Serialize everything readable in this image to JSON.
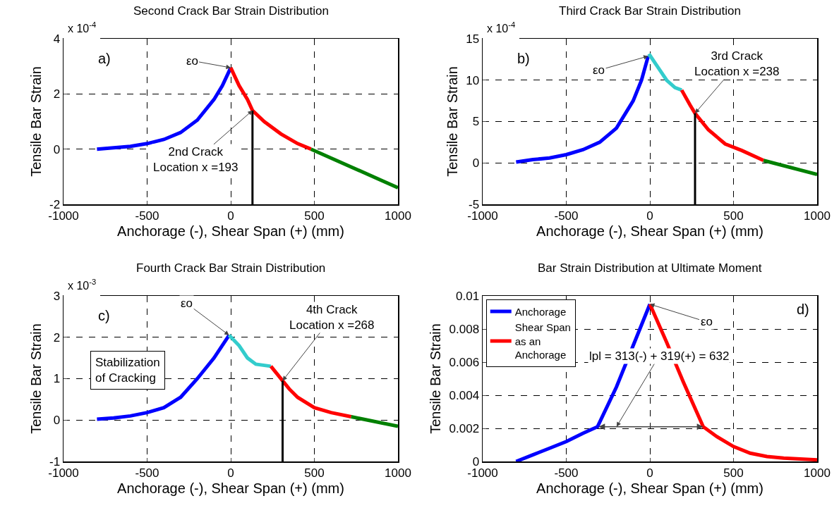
{
  "chart_data": [
    {
      "type": "line",
      "title": "Second Crack Bar Strain Distribution",
      "xlabel": "Anchorage (-), Shear Span (+) (mm)",
      "ylabel": "Tensile Bar Strain",
      "xlim": [
        -1000,
        1000
      ],
      "xticks": [
        -1000,
        -500,
        0,
        500,
        1000
      ],
      "ylim": [
        -2,
        4
      ],
      "yticks": [
        -2,
        0,
        2,
        4
      ],
      "grid": true,
      "legend": false,
      "annotations": [
        "x 10$^{-4}$",
        "a)",
        {
          "text": "εo",
          "x": 0,
          "y": 2.95
        },
        {
          "text": "2nd Crack\nLocation x =193",
          "x": 130,
          "y": 1.4
        }
      ],
      "series": [
        {
          "color": "#0000ff",
          "x": [
            -800,
            -700,
            -600,
            -500,
            -400,
            -300,
            -200,
            -100,
            -50,
            0
          ],
          "values": [
            0,
            0.05,
            0.1,
            0.2,
            0.35,
            0.6,
            1.05,
            1.8,
            2.3,
            2.95
          ]
        },
        {
          "color": "#ff0000",
          "x": [
            0,
            50,
            100,
            130,
            200,
            300,
            400,
            480
          ],
          "values": [
            2.95,
            2.3,
            1.8,
            1.4,
            1.0,
            0.55,
            0.2,
            0
          ]
        },
        {
          "color": "#008000",
          "x": [
            480,
            1000
          ],
          "values": [
            0,
            -1.4
          ]
        },
        {
          "color": "#000000",
          "x": [
            130,
            130
          ],
          "values": [
            -2,
            1.4
          ]
        }
      ]
    },
    {
      "type": "line",
      "title": "Third Crack Bar Strain Distribution",
      "xlabel": "Anchorage (-), Shear Span (+) (mm)",
      "ylabel": "Tensile Bar Strain",
      "xlim": [
        -1000,
        1000
      ],
      "xticks": [
        -1000,
        -500,
        0,
        500,
        1000
      ],
      "ylim": [
        -5,
        15
      ],
      "yticks": [
        -5,
        0,
        5,
        10,
        15
      ],
      "grid": true,
      "legend": false,
      "annotations": [
        "x 10$^{-4}$",
        "b)",
        {
          "text": "εo",
          "x": -10,
          "y": 12.9
        },
        {
          "text": "3rd Crack\nLocation x =238",
          "x": 270,
          "y": 6
        }
      ],
      "series": [
        {
          "color": "#0000ff",
          "x": [
            -800,
            -700,
            -600,
            -500,
            -400,
            -300,
            -200,
            -100,
            -50,
            -10
          ],
          "values": [
            0.1,
            0.4,
            0.6,
            1.0,
            1.6,
            2.5,
            4.2,
            7.5,
            10,
            12.9
          ]
        },
        {
          "color": "#33cccc",
          "x": [
            -10,
            0,
            50,
            100,
            150,
            190
          ],
          "values": [
            12.9,
            13,
            11.5,
            10,
            9.1,
            8.8
          ]
        },
        {
          "color": "#ff0000",
          "x": [
            190,
            240,
            270,
            350,
            450,
            550,
            680
          ],
          "values": [
            8.8,
            7,
            6,
            4,
            2.3,
            1.5,
            0.3
          ]
        },
        {
          "color": "#008000",
          "x": [
            680,
            1000
          ],
          "values": [
            0.3,
            -1.4
          ]
        },
        {
          "color": "#000000",
          "x": [
            270,
            270
          ],
          "values": [
            -5,
            6
          ]
        }
      ]
    },
    {
      "type": "line",
      "title": "Fourth Crack Bar Strain Distribution",
      "xlabel": "Anchorage (-), Shear Span (+) (mm)",
      "ylabel": "Tensile Bar Strain",
      "xlim": [
        -1000,
        1000
      ],
      "xticks": [
        -1000,
        -500,
        0,
        500,
        1000
      ],
      "ylim": [
        -1,
        3
      ],
      "yticks": [
        -1,
        0,
        1,
        2,
        3
      ],
      "grid": true,
      "legend": false,
      "annotations": [
        "x 10$^{-3}$",
        "c)",
        "Stabilization\nof Cracking",
        {
          "text": "εo",
          "x": -10,
          "y": 2.05
        },
        {
          "text": "4th Crack\nLocation x =268",
          "x": 310,
          "y": 0.95
        }
      ],
      "series": [
        {
          "color": "#0000ff",
          "x": [
            -800,
            -700,
            -600,
            -500,
            -400,
            -300,
            -200,
            -100,
            -10
          ],
          "values": [
            0.02,
            0.05,
            0.1,
            0.18,
            0.3,
            0.55,
            1.0,
            1.5,
            2.05
          ]
        },
        {
          "color": "#33cccc",
          "x": [
            -10,
            50,
            100,
            150,
            240
          ],
          "values": [
            2.05,
            1.8,
            1.5,
            1.35,
            1.3
          ]
        },
        {
          "color": "#ff0000",
          "x": [
            240,
            310,
            350,
            400,
            500,
            600,
            720
          ],
          "values": [
            1.3,
            0.95,
            0.75,
            0.55,
            0.3,
            0.18,
            0.08
          ]
        },
        {
          "color": "#008000",
          "x": [
            720,
            1000
          ],
          "values": [
            0.08,
            -0.15
          ]
        },
        {
          "color": "#000000",
          "x": [
            310,
            310
          ],
          "values": [
            -1,
            0.95
          ]
        }
      ]
    },
    {
      "type": "line",
      "title": "Bar Strain Distribution at Ultimate Moment",
      "xlabel": "Anchorage (-), Shear Span (+) (mm)",
      "ylabel": "Tensile Bar Strain",
      "xlim": [
        -1000,
        1000
      ],
      "xticks": [
        -1000,
        -500,
        0,
        500,
        1000
      ],
      "ylim": [
        0,
        0.01
      ],
      "yticks": [
        0,
        0.002,
        0.004,
        0.006,
        0.008,
        0.01
      ],
      "grid": true,
      "legend": "top left",
      "annotations": [
        "d)",
        {
          "text": "εo",
          "x": 0,
          "y": 0.0095
        },
        "lpl = 313(-) + 319(+) = 632"
      ],
      "series": [
        {
          "name": "Anchorage",
          "color": "#0000ff",
          "x": [
            -800,
            -700,
            -600,
            -500,
            -400,
            -313,
            -200,
            -100,
            0
          ],
          "values": [
            0,
            0.0004,
            0.0008,
            0.0012,
            0.0017,
            0.0021,
            0.0045,
            0.007,
            0.0095
          ]
        },
        {
          "name": "Shear Span\nas an\nAnchorage",
          "color": "#ff0000",
          "x": [
            0,
            100,
            200,
            319,
            400,
            500,
            600,
            700,
            800,
            1000
          ],
          "values": [
            0.0095,
            0.0072,
            0.0048,
            0.0021,
            0.0015,
            0.0009,
            0.0005,
            0.0003,
            0.0002,
            0.0001
          ]
        }
      ]
    }
  ]
}
